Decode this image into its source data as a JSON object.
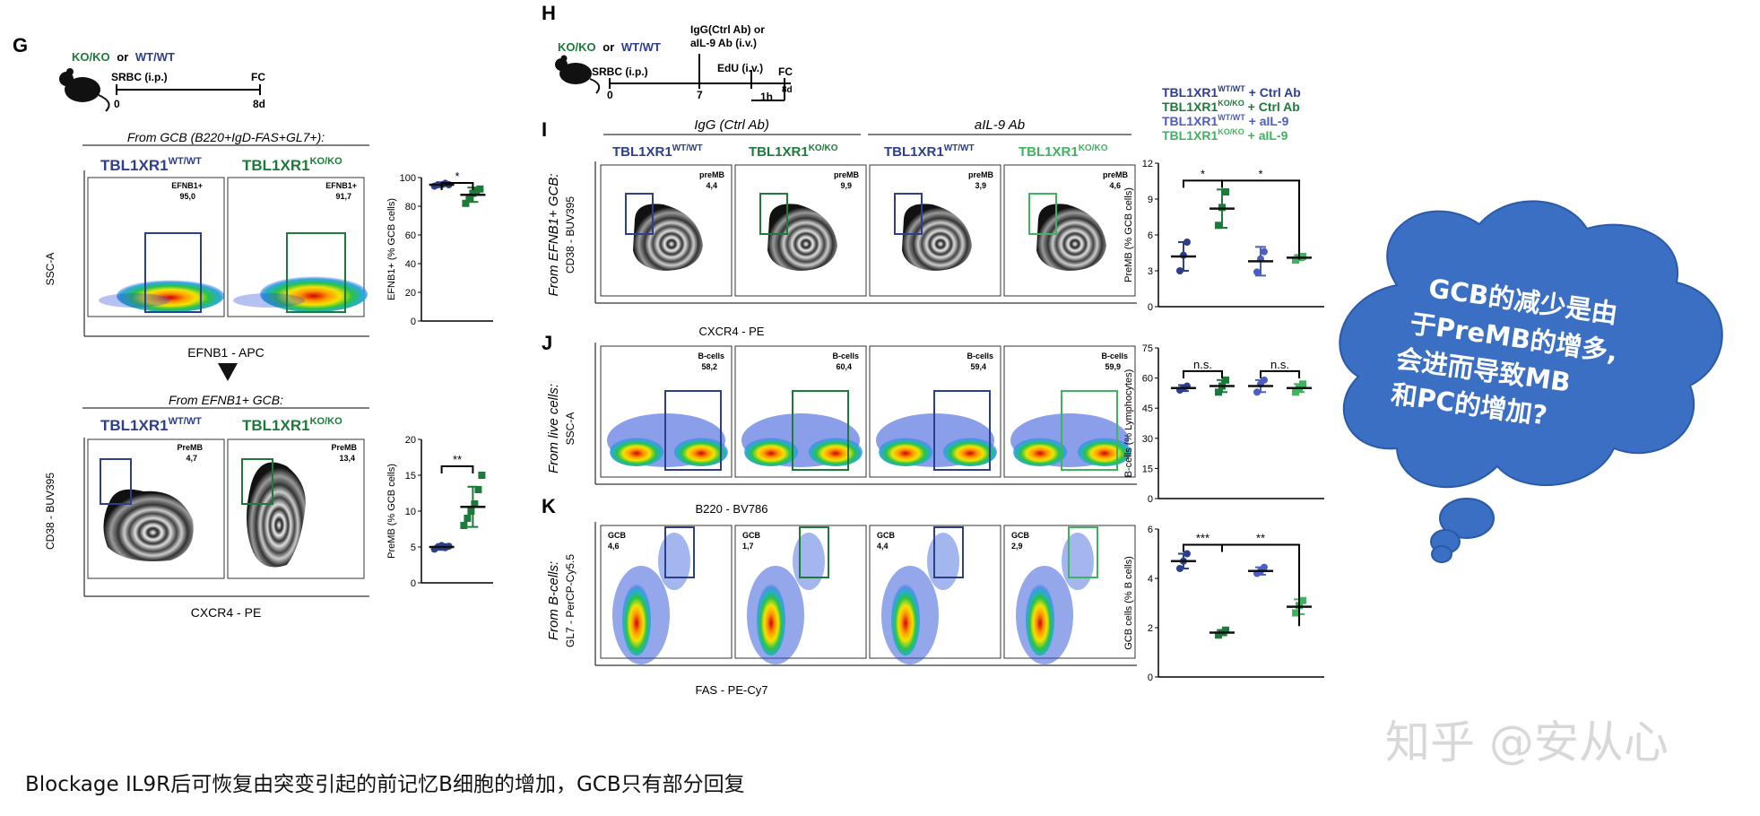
{
  "colors": {
    "wt": "#2c3e8c",
    "ko": "#1e7a3a",
    "wt_il9": "#4a5fbf",
    "ko_il9": "#3fb35f",
    "bubble": "#3b6fc4"
  },
  "G": {
    "letter": "G",
    "timeline": {
      "geno_ko": "KO/KO",
      "or": "or",
      "geno_wt": "WT/WT",
      "srbc": "SRBC (i.p.)",
      "fc": "FC",
      "t0": "0",
      "t8": "8d"
    },
    "top_title": "From GCB (B220+IgD-FAS+GL7+):",
    "wt": "TBL1XR1",
    "wt_sup": "WT/WT",
    "ko": "TBL1XR1",
    "ko_sup": "KO/KO",
    "gate1": {
      "name": "EFNB1+",
      "wt": "95,0",
      "ko": "91,7"
    },
    "yaxis1": "SSC-A",
    "xaxis1": "EFNB1 - APC",
    "bot_title": "From EFNB1+ GCB:",
    "gate2": {
      "name": "PreMB",
      "wt": "4,7",
      "ko": "13,4"
    },
    "yaxis2": "CD38 - BUV395",
    "xaxis2": "CXCR4 - PE"
  },
  "H": {
    "letter": "H",
    "geno_ko": "KO/KO",
    "or": "or",
    "geno_wt": "WT/WT",
    "srbc": "SRBC (i.p.)",
    "igg": "IgG(Ctrl Ab) or",
    "ail9": "aIL-9 Ab (i.v.)",
    "edu": "EdU (i.v.)",
    "fc": "FC",
    "t0": "0",
    "t7": "7",
    "t1h": "1h",
    "t8d": "8d"
  },
  "legend": [
    {
      "base": "TBL1XR1",
      "sup": "WT/WT",
      "suffix": " + Ctrl Ab"
    },
    {
      "base": "TBL1XR1",
      "sup": "KO/KO",
      "suffix": " + Ctrl Ab"
    },
    {
      "base": "TBL1XR1",
      "sup": "WT/WT",
      "suffix": " + aIL-9"
    },
    {
      "base": "TBL1XR1",
      "sup": "KO/KO",
      "suffix": " + aIL-9"
    }
  ],
  "groups": {
    "ctrl": "IgG (Ctrl Ab)",
    "il9": "aIL-9 Ab"
  },
  "col_headers": [
    {
      "base": "TBL1XR1",
      "sup": "WT/WT"
    },
    {
      "base": "TBL1XR1",
      "sup": "KO/KO"
    },
    {
      "base": "TBL1XR1",
      "sup": "WT/WT"
    },
    {
      "base": "TBL1XR1",
      "sup": "KO/KO"
    }
  ],
  "I": {
    "letter": "I",
    "from": "From EFNB1+ GCB:",
    "yaxis": "CD38 - BUV395",
    "xaxis": "CXCR4 - PE",
    "gate": "preMB",
    "values": [
      "4,4",
      "9,9",
      "3,9",
      "4,6"
    ]
  },
  "J": {
    "letter": "J",
    "from": "From live cells:",
    "yaxis": "SSC-A",
    "xaxis": "B220 - BV786",
    "gate": "B-cells",
    "values": [
      "58,2",
      "60,4",
      "59,4",
      "59,9"
    ]
  },
  "K": {
    "letter": "K",
    "from": "From B-cells:",
    "yaxis": "GL7 - PerCP-Cy5.5",
    "xaxis": "FAS - PE-Cy7",
    "gate": "GCB",
    "values": [
      "4,6",
      "1,7",
      "4,4",
      "2,9"
    ]
  },
  "bubble_text": [
    "GCB的减少是由",
    "于PreMB的增多,",
    "会进而导致MB",
    "和PC的增加?"
  ],
  "watermark": "知乎 @安从心",
  "caption": "Blockage IL9R后可恢复由突变引起的前记忆B细胞的增加，GCB只有部分回复",
  "chart_data": [
    {
      "type": "scatter",
      "id": "G-EFNB1",
      "ylabel": "EFNB1+ (% GCB cells)",
      "ylim": [
        0,
        100
      ],
      "yticks": [
        "0",
        "20",
        "40",
        "60",
        "80",
        "100"
      ],
      "categories": [
        "WT",
        "KO"
      ],
      "series": [
        {
          "name": "WT",
          "mean": 95,
          "sd": 1,
          "points": [
            94,
            95,
            95,
            96,
            95
          ]
        },
        {
          "name": "KO",
          "mean": 88,
          "sd": 5,
          "points": [
            82,
            86,
            89,
            91,
            92
          ]
        }
      ],
      "sig": [
        {
          "from": 0,
          "to": 1,
          "label": "*"
        }
      ]
    },
    {
      "type": "scatter",
      "id": "G-PreMB",
      "ylabel": "PreMB (% GCB cells)",
      "ylim": [
        0,
        20
      ],
      "yticks": [
        "0",
        "5",
        "10",
        "15",
        "20"
      ],
      "categories": [
        "WT",
        "KO"
      ],
      "series": [
        {
          "name": "WT",
          "mean": 5,
          "sd": 0.4,
          "points": [
            4.7,
            5,
            5.2,
            4.9,
            5.1
          ]
        },
        {
          "name": "KO",
          "mean": 10.6,
          "sd": 2.8,
          "points": [
            8,
            9,
            10,
            11,
            13,
            15
          ]
        }
      ],
      "sig": [
        {
          "from": 0,
          "to": 1,
          "label": "**"
        }
      ]
    },
    {
      "type": "scatter",
      "id": "I-PreMB",
      "ylabel": "PreMB (% GCB cells)",
      "ylim": [
        0,
        12
      ],
      "yticks": [
        "0",
        "3",
        "6",
        "9",
        "12"
      ],
      "categories": [
        "WT Ctrl",
        "KO Ctrl",
        "WT aIL-9",
        "KO aIL-9"
      ],
      "series": [
        {
          "name": "WT Ctrl",
          "mean": 4.2,
          "sd": 1.2,
          "points": [
            3,
            4.3,
            5.4
          ]
        },
        {
          "name": "KO Ctrl",
          "mean": 8.2,
          "sd": 1.6,
          "points": [
            6.8,
            8.3,
            9.6
          ]
        },
        {
          "name": "WT aIL-9",
          "mean": 3.8,
          "sd": 1.2,
          "points": [
            2.9,
            4,
            4.6
          ]
        },
        {
          "name": "KO aIL-9",
          "mean": 4.1,
          "sd": 0.2,
          "points": [
            3.9,
            4.1,
            4.2
          ]
        }
      ],
      "sig": [
        {
          "from": 0,
          "to": 1,
          "label": "*"
        },
        {
          "from": 1,
          "to": 3,
          "label": "*"
        }
      ]
    },
    {
      "type": "scatter",
      "id": "J-Bcells",
      "ylabel": "B-cells (% Lymphocytes)",
      "ylim": [
        0,
        75
      ],
      "yticks": [
        "0",
        "15",
        "30",
        "45",
        "60",
        "75"
      ],
      "categories": [
        "WT Ctrl",
        "KO Ctrl",
        "WT aIL-9",
        "KO aIL-9"
      ],
      "series": [
        {
          "name": "WT Ctrl",
          "mean": 55,
          "sd": 1.5,
          "points": [
            54,
            55,
            56
          ]
        },
        {
          "name": "KO Ctrl",
          "mean": 56,
          "sd": 3,
          "points": [
            53,
            56,
            59
          ]
        },
        {
          "name": "WT aIL-9",
          "mean": 56,
          "sd": 3,
          "points": [
            53,
            57,
            59
          ]
        },
        {
          "name": "KO aIL-9",
          "mean": 55,
          "sd": 2,
          "points": [
            53,
            55,
            57
          ]
        }
      ],
      "sig": [
        {
          "from": 0,
          "to": 1,
          "label": "n.s."
        },
        {
          "from": 2,
          "to": 3,
          "label": "n.s."
        }
      ]
    },
    {
      "type": "scatter",
      "id": "K-GCB",
      "ylabel": "GCB cells (% B cells)",
      "ylim": [
        0,
        6
      ],
      "yticks": [
        "0",
        "2",
        "4",
        "6"
      ],
      "categories": [
        "WT Ctrl",
        "KO Ctrl",
        "WT aIL-9",
        "KO aIL-9"
      ],
      "series": [
        {
          "name": "WT Ctrl",
          "mean": 4.7,
          "sd": 0.3,
          "points": [
            4.4,
            4.7,
            5
          ]
        },
        {
          "name": "KO Ctrl",
          "mean": 1.8,
          "sd": 0.1,
          "points": [
            1.7,
            1.8,
            1.9
          ]
        },
        {
          "name": "WT aIL-9",
          "mean": 4.3,
          "sd": 0.15,
          "points": [
            4.2,
            4.3,
            4.45
          ]
        },
        {
          "name": "KO aIL-9",
          "mean": 2.85,
          "sd": 0.3,
          "points": [
            2.6,
            2.9,
            3.1
          ]
        }
      ],
      "sig": [
        {
          "from": 0,
          "to": 1,
          "label": "***"
        },
        {
          "from": 1,
          "to": 3,
          "label": "**"
        }
      ]
    }
  ]
}
